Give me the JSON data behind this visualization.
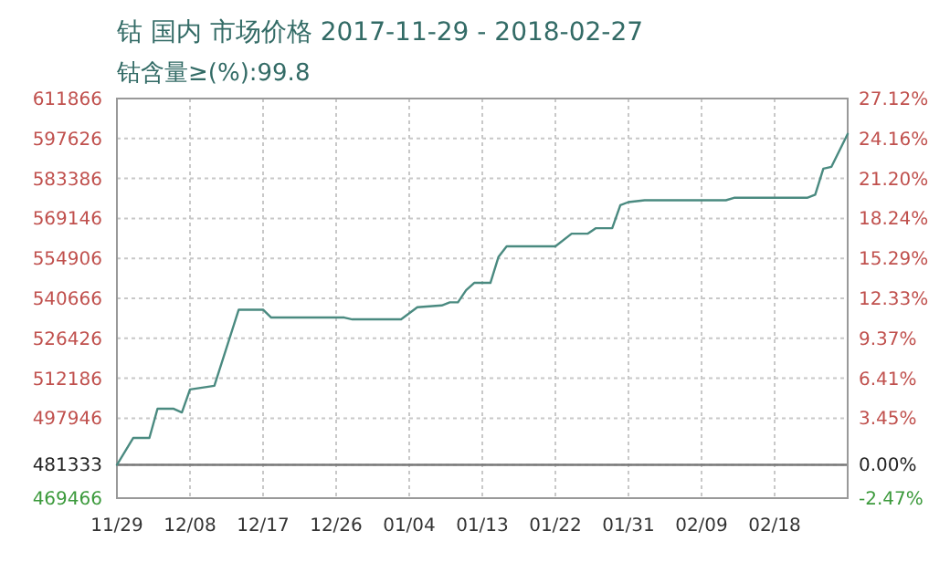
{
  "chart_data": {
    "type": "line",
    "title": "钴 国内 市场价格 2017-11-29 - 2018-02-27",
    "subtitle": "钴含量≥(%):99.8",
    "x": [
      "2017-11-29",
      "2017-12-01",
      "2017-12-03",
      "2017-12-04",
      "2017-12-06",
      "2017-12-07",
      "2017-12-08",
      "2017-12-11",
      "2017-12-14",
      "2017-12-17",
      "2017-12-18",
      "2017-12-27",
      "2017-12-28",
      "2018-01-03",
      "2018-01-05",
      "2018-01-08",
      "2018-01-09",
      "2018-01-10",
      "2018-01-11",
      "2018-01-12",
      "2018-01-14",
      "2018-01-15",
      "2018-01-16",
      "2018-01-22",
      "2018-01-24",
      "2018-01-26",
      "2018-01-27",
      "2018-01-29",
      "2018-01-30",
      "2018-01-31",
      "2018-02-02",
      "2018-02-12",
      "2018-02-13",
      "2018-02-22",
      "2018-02-23",
      "2018-02-24",
      "2018-02-25",
      "2018-02-27"
    ],
    "series": [
      {
        "color": "#4a8a80",
        "values": [
          481333,
          490916,
          490916,
          501316,
          501316,
          500016,
          508206,
          509506,
          536611,
          536611,
          533816,
          533816,
          533166,
          533166,
          537476,
          538126,
          539226,
          539226,
          543576,
          546176,
          546176,
          555466,
          559196,
          559196,
          563716,
          563716,
          565666,
          565666,
          573856,
          574966,
          575616,
          575616,
          576486,
          576486,
          577596,
          586896,
          587546,
          599236
        ]
      }
    ],
    "xlim": [
      "2017-11-29",
      "2018-02-27"
    ],
    "xticks": [
      {
        "value": "2017-11-29",
        "label": "11/29"
      },
      {
        "value": "2017-12-08",
        "label": "12/08"
      },
      {
        "value": "2017-12-17",
        "label": "12/17"
      },
      {
        "value": "2017-12-26",
        "label": "12/26"
      },
      {
        "value": "2018-01-04",
        "label": "01/04"
      },
      {
        "value": "2018-01-13",
        "label": "01/13"
      },
      {
        "value": "2018-01-22",
        "label": "01/22"
      },
      {
        "value": "2018-01-31",
        "label": "01/31"
      },
      {
        "value": "2018-02-09",
        "label": "02/09"
      },
      {
        "value": "2018-02-18",
        "label": "02/18"
      }
    ],
    "ylim": [
      469466,
      611866
    ],
    "yticks": [
      469466,
      481333,
      497946,
      512186,
      526426,
      540666,
      554906,
      569146,
      583386,
      597626,
      611866
    ],
    "y2lim": [
      -2.47,
      27.12
    ],
    "y2ticks": [
      {
        "value": -2.47,
        "label": "-2.47%"
      },
      {
        "value": 0,
        "label": "0.00%"
      },
      {
        "value": 3.45,
        "label": "3.45%"
      },
      {
        "value": 6.41,
        "label": "6.41%"
      },
      {
        "value": 9.37,
        "label": "9.37%"
      },
      {
        "value": 12.33,
        "label": "12.33%"
      },
      {
        "value": 15.29,
        "label": "15.29%"
      },
      {
        "value": 18.24,
        "label": "18.24%"
      },
      {
        "value": 21.2,
        "label": "21.20%"
      },
      {
        "value": 24.16,
        "label": "24.16%"
      },
      {
        "value": 27.12,
        "label": "27.12%"
      }
    ],
    "ref_lines": [
      {
        "axis": "y",
        "value": 481333,
        "color": "#777777"
      }
    ],
    "grid": true,
    "line_style": "solid"
  }
}
